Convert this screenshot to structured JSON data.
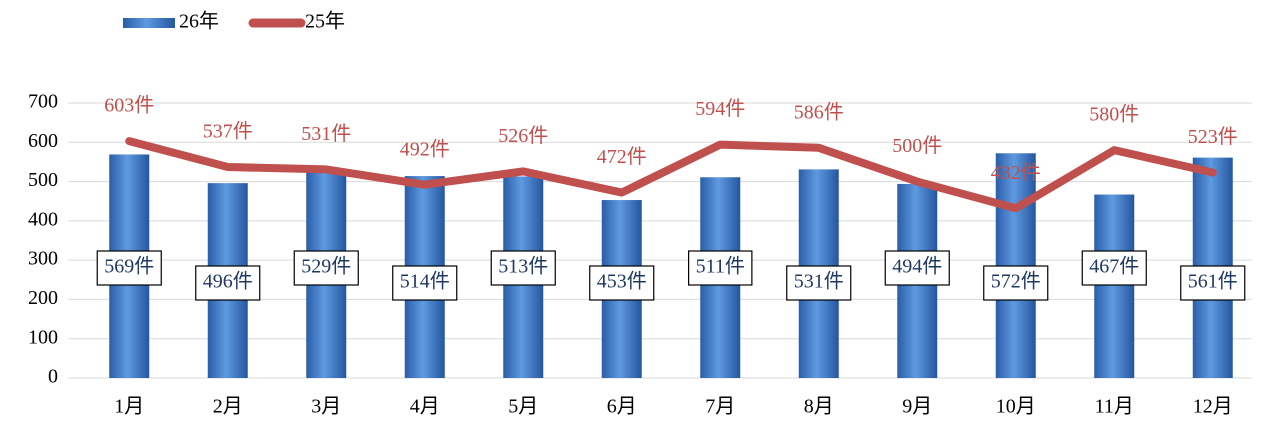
{
  "chart_data": {
    "type": "bar",
    "categories": [
      "1月",
      "2月",
      "3月",
      "4月",
      "5月",
      "6月",
      "7月",
      "8月",
      "9月",
      "10月",
      "11月",
      "12月"
    ],
    "series": [
      {
        "name": "26年",
        "type": "bar",
        "color": "#3a76c4",
        "values": [
          569,
          496,
          529,
          514,
          513,
          453,
          511,
          531,
          494,
          572,
          467,
          561
        ],
        "value_labels": [
          "569件",
          "496件",
          "529件",
          "514件",
          "513件",
          "453件",
          "511件",
          "531件",
          "494件",
          "572件",
          "467件",
          "561件"
        ]
      },
      {
        "name": "25年",
        "type": "line",
        "color": "#c0504d",
        "values": [
          603,
          537,
          531,
          492,
          526,
          472,
          594,
          586,
          500,
          432,
          580,
          523
        ],
        "value_labels": [
          "603件",
          "537件",
          "531件",
          "492件",
          "526件",
          "472件",
          "594件",
          "586件",
          "500件",
          "432件",
          "580件",
          "523件"
        ]
      }
    ],
    "ylim": [
      0,
      700
    ],
    "yticks": [
      0,
      100,
      200,
      300,
      400,
      500,
      600,
      700
    ],
    "grid": true,
    "legend": "top-left"
  }
}
